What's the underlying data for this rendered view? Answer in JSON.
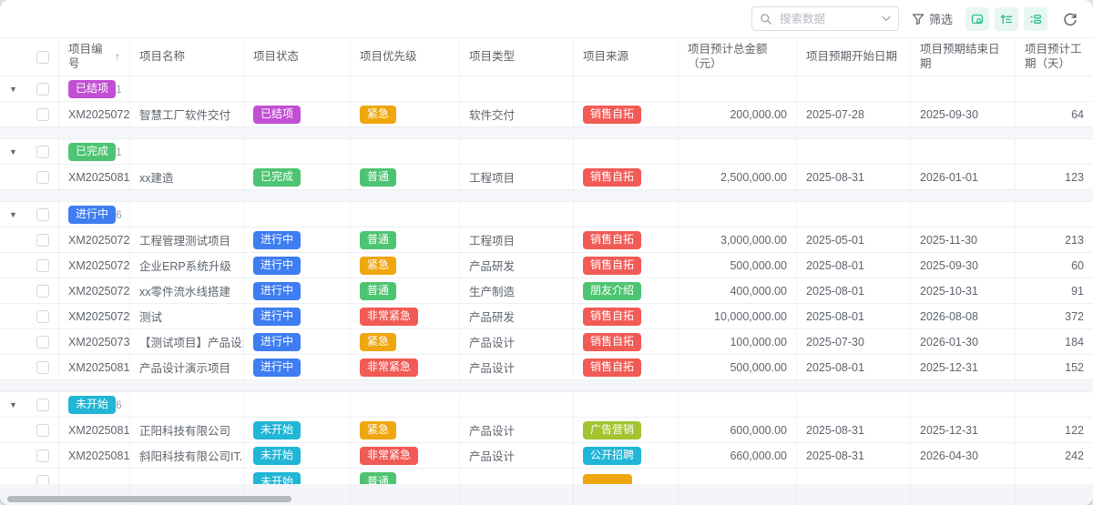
{
  "toolbar": {
    "search_placeholder": "搜索数据",
    "filter_label": "筛选",
    "icons": [
      "search-icon",
      "chevron-down-icon",
      "funnel-icon",
      "card-view-icon",
      "tree-view-icon",
      "group-view-icon",
      "refresh-icon"
    ]
  },
  "glyphs": {
    "collapse": "▼",
    "sort_asc": "↑"
  },
  "palette": {
    "magenta": "#c24fd3",
    "green": "#4dc471",
    "blue": "#3e7df2",
    "cyan": "#21b5d6",
    "orange": "#f0a60f",
    "red": "#f15a55",
    "lime": "#a3c32f"
  },
  "columns": [
    {
      "key": "id",
      "label": "项目编号",
      "sort": true
    },
    {
      "key": "name",
      "label": "项目名称"
    },
    {
      "key": "status",
      "label": "项目状态"
    },
    {
      "key": "priority",
      "label": "项目优先级"
    },
    {
      "key": "type",
      "label": "项目类型"
    },
    {
      "key": "source",
      "label": "项目来源"
    },
    {
      "key": "amount",
      "label": "项目预计总金额（元）"
    },
    {
      "key": "start",
      "label": "项目预期开始日期"
    },
    {
      "key": "end",
      "label": "项目预期结束日期"
    },
    {
      "key": "days",
      "label": "项目预计工期（天）"
    }
  ],
  "groups": [
    {
      "label": "已结项",
      "c": "magenta",
      "count": "1",
      "rows": [
        {
          "id": "XM2025072...",
          "name": "智慧工厂软件交付",
          "status": {
            "t": "已结项",
            "c": "magenta"
          },
          "priority": {
            "t": "紧急",
            "c": "orange"
          },
          "type": "软件交付",
          "source": {
            "t": "销售自拓",
            "c": "red"
          },
          "amount": "200,000.00",
          "start": "2025-07-28",
          "end": "2025-09-30",
          "days": "64"
        }
      ]
    },
    {
      "label": "已完成",
      "c": "green",
      "count": "1",
      "rows": [
        {
          "id": "XM2025081...",
          "name": "xx建造",
          "status": {
            "t": "已完成",
            "c": "green"
          },
          "priority": {
            "t": "普通",
            "c": "green"
          },
          "type": "工程项目",
          "source": {
            "t": "销售自拓",
            "c": "red"
          },
          "amount": "2,500,000.00",
          "start": "2025-08-31",
          "end": "2026-01-01",
          "days": "123"
        }
      ]
    },
    {
      "label": "进行中",
      "c": "blue",
      "count": "6",
      "rows": [
        {
          "id": "XM2025072...",
          "name": "工程管理测试项目",
          "status": {
            "t": "进行中",
            "c": "blue"
          },
          "priority": {
            "t": "普通",
            "c": "green"
          },
          "type": "工程项目",
          "source": {
            "t": "销售自拓",
            "c": "red"
          },
          "amount": "3,000,000.00",
          "start": "2025-05-01",
          "end": "2025-11-30",
          "days": "213"
        },
        {
          "id": "XM2025072...",
          "name": "企业ERP系统升级",
          "status": {
            "t": "进行中",
            "c": "blue"
          },
          "priority": {
            "t": "紧急",
            "c": "orange"
          },
          "type": "产品研发",
          "source": {
            "t": "销售自拓",
            "c": "red"
          },
          "amount": "500,000.00",
          "start": "2025-08-01",
          "end": "2025-09-30",
          "days": "60"
        },
        {
          "id": "XM2025072...",
          "name": "xx零件流水线搭建",
          "status": {
            "t": "进行中",
            "c": "blue"
          },
          "priority": {
            "t": "普通",
            "c": "green"
          },
          "type": "生产制造",
          "source": {
            "t": "朋友介绍",
            "c": "green"
          },
          "amount": "400,000.00",
          "start": "2025-08-01",
          "end": "2025-10-31",
          "days": "91"
        },
        {
          "id": "XM2025072...",
          "name": "测试",
          "status": {
            "t": "进行中",
            "c": "blue"
          },
          "priority": {
            "t": "非常紧急",
            "c": "red"
          },
          "type": "产品研发",
          "source": {
            "t": "销售自拓",
            "c": "red"
          },
          "amount": "10,000,000.00",
          "start": "2025-08-01",
          "end": "2026-08-08",
          "days": "372"
        },
        {
          "id": "XM2025073...",
          "name": "【测试项目】产品设...",
          "status": {
            "t": "进行中",
            "c": "blue"
          },
          "priority": {
            "t": "紧急",
            "c": "orange"
          },
          "type": "产品设计",
          "source": {
            "t": "销售自拓",
            "c": "red"
          },
          "amount": "100,000.00",
          "start": "2025-07-30",
          "end": "2026-01-30",
          "days": "184"
        },
        {
          "id": "XM2025081...",
          "name": "产品设计演示项目",
          "status": {
            "t": "进行中",
            "c": "blue"
          },
          "priority": {
            "t": "非常紧急",
            "c": "red"
          },
          "type": "产品设计",
          "source": {
            "t": "销售自拓",
            "c": "red"
          },
          "amount": "500,000.00",
          "start": "2025-08-01",
          "end": "2025-12-31",
          "days": "152"
        }
      ]
    },
    {
      "label": "未开始",
      "c": "cyan",
      "count": "6",
      "rows": [
        {
          "id": "XM2025081...",
          "name": "正阳科技有限公司",
          "status": {
            "t": "未开始",
            "c": "cyan"
          },
          "priority": {
            "t": "紧急",
            "c": "orange"
          },
          "type": "产品设计",
          "source": {
            "t": "广告营销",
            "c": "lime"
          },
          "amount": "600,000.00",
          "start": "2025-08-31",
          "end": "2025-12-31",
          "days": "122"
        },
        {
          "id": "XM2025081...",
          "name": "斜阳科技有限公司IT...",
          "status": {
            "t": "未开始",
            "c": "cyan"
          },
          "priority": {
            "t": "非常紧急",
            "c": "red"
          },
          "type": "产品设计",
          "source": {
            "t": "公开招聘",
            "c": "cyan"
          },
          "amount": "660,000.00",
          "start": "2025-08-31",
          "end": "2026-04-30",
          "days": "242"
        },
        {
          "partial": true,
          "id": "",
          "name": "",
          "status": {
            "t": "未开始",
            "c": "cyan"
          },
          "priority": {
            "t": "普通",
            "c": "green"
          },
          "type": "",
          "source": {
            "t": "",
            "c": "orange"
          },
          "amount": "",
          "start": "",
          "end": "",
          "days": ""
        }
      ]
    }
  ]
}
